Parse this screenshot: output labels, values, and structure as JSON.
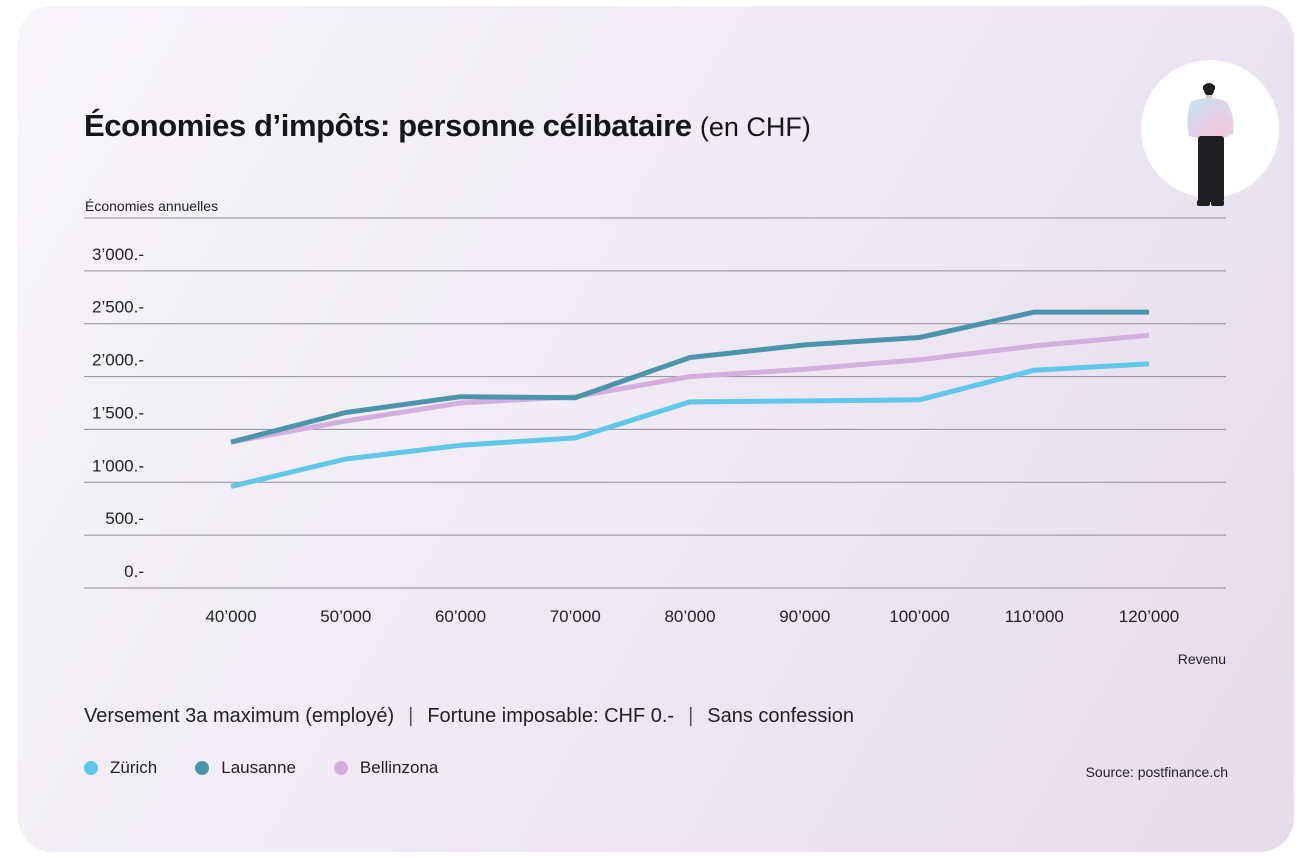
{
  "title": {
    "main": "Économies d’impôts: personne célibataire",
    "unit": "(en CHF)"
  },
  "chart_data": {
    "type": "line",
    "title": "Économies d’impôts: personne célibataire (en CHF)",
    "xlabel": "Revenu",
    "ylabel": "Économies annuelles",
    "x": [
      40000,
      50000,
      60000,
      70000,
      80000,
      90000,
      100000,
      110000,
      120000
    ],
    "x_tick_labels": [
      "40’000",
      "50’000",
      "60’000",
      "70’000",
      "80’000",
      "90’000",
      "100’000",
      "110’000",
      "120’000"
    ],
    "y_ticks": [
      0,
      500,
      1000,
      1500,
      2000,
      2500,
      3000
    ],
    "y_tick_labels": [
      "0.-",
      "500.-",
      "1’000.-",
      "1’500.-",
      "2’000.-",
      "2’500.-",
      "3’000.-"
    ],
    "ylim": [
      0,
      3500
    ],
    "grid": true,
    "legend_position": "bottom-left",
    "series": [
      {
        "name": "Zürich",
        "color": "#5ec7ea",
        "values": [
          960,
          1220,
          1350,
          1420,
          1760,
          1770,
          1780,
          2060,
          2120
        ]
      },
      {
        "name": "Lausanne",
        "color": "#4a95ab",
        "values": [
          1380,
          1660,
          1810,
          1800,
          2180,
          2300,
          2370,
          2610,
          2610
        ]
      },
      {
        "name": "Bellinzona",
        "color": "#d4aedf",
        "values": [
          1380,
          1580,
          1750,
          1810,
          2000,
          2070,
          2160,
          2290,
          2390
        ]
      }
    ]
  },
  "footnote": {
    "parts": [
      "Versement 3a maximum (employé)",
      "Fortune imposable: CHF 0.-",
      "Sans confession"
    ],
    "separator": "|"
  },
  "source": "Source: postfinance.ch",
  "illustration": {
    "icon": "person-illustration-icon"
  }
}
